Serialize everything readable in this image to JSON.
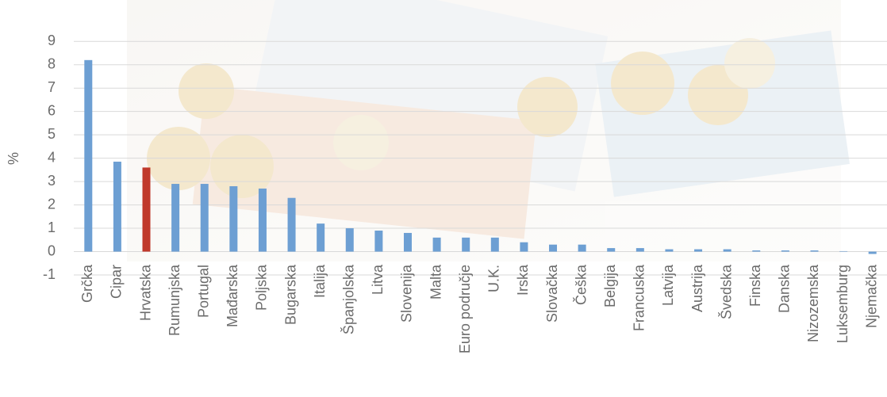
{
  "chart_data": {
    "type": "bar",
    "y_label": "%",
    "categories": [
      "Grčka",
      "Cipar",
      "Hrvatska",
      "Rumunjska",
      "Portugal",
      "Mađarska",
      "Poljska",
      "Bugarska",
      "Italija",
      "Španjolska",
      "Litva",
      "Slovenija",
      "Malta",
      "Euro područje",
      "U.K.",
      "Irska",
      "Slovačka",
      "Češka",
      "Belgija",
      "Francuska",
      "Latvija",
      "Austrija",
      "Švedska",
      "Finska",
      "Danska",
      "Nizozemska",
      "Luksemburg",
      "Njemačka"
    ],
    "values": [
      8.2,
      3.85,
      3.6,
      2.9,
      2.9,
      2.8,
      2.7,
      2.3,
      1.2,
      1.0,
      0.9,
      0.8,
      0.6,
      0.6,
      0.6,
      0.4,
      0.3,
      0.3,
      0.15,
      0.15,
      0.1,
      0.1,
      0.1,
      0.05,
      0.05,
      0.05,
      0.02,
      -0.1
    ],
    "color": "#6d9fd3",
    "highlight": {
      "index": 2,
      "color": "#c0392b"
    },
    "ylim": [
      -1,
      9.5
    ],
    "yticks": [
      -1,
      0,
      1,
      2,
      3,
      4,
      5,
      6,
      7,
      8,
      9
    ],
    "grid": true
  }
}
